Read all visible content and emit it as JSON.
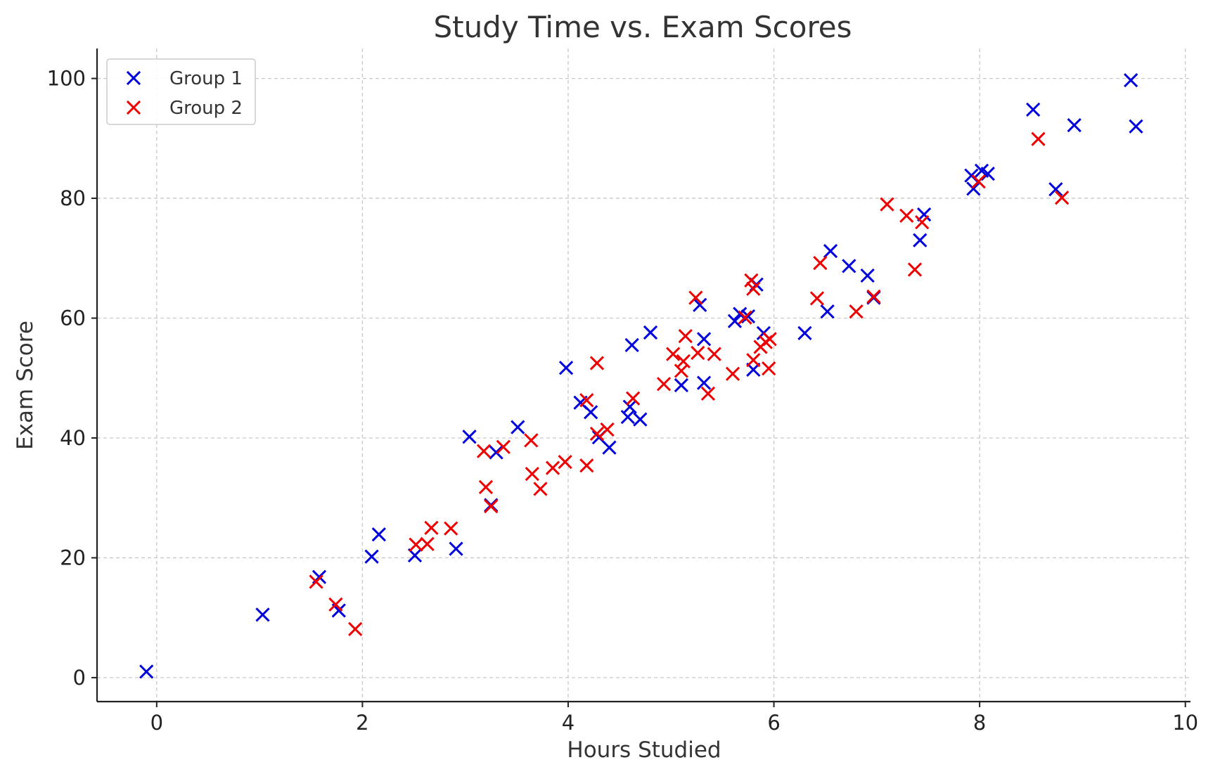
{
  "chart_data": {
    "type": "scatter",
    "title": "Study Time vs. Exam Scores",
    "xlabel": "Hours Studied",
    "ylabel": "Exam Score",
    "xlim": [
      -0.58,
      10.05
    ],
    "ylim": [
      -4,
      105
    ],
    "xticks": [
      0,
      2,
      4,
      6,
      8,
      10
    ],
    "yticks": [
      0,
      20,
      40,
      60,
      80,
      100
    ],
    "grid": true,
    "legend_position": "top-left",
    "marker": "x",
    "series": [
      {
        "name": "Group 1",
        "color": "#0000dd",
        "points": [
          [
            -0.1,
            1
          ],
          [
            1.03,
            10.5
          ],
          [
            1.58,
            16.8
          ],
          [
            1.77,
            11.2
          ],
          [
            2.09,
            20.2
          ],
          [
            2.16,
            23.9
          ],
          [
            2.51,
            20.4
          ],
          [
            2.91,
            21.5
          ],
          [
            3.04,
            40.2
          ],
          [
            3.25,
            28.8
          ],
          [
            3.3,
            37.6
          ],
          [
            3.51,
            41.8
          ],
          [
            3.98,
            51.7
          ],
          [
            4.12,
            45.9
          ],
          [
            4.22,
            44.3
          ],
          [
            4.3,
            40.1
          ],
          [
            4.4,
            38.4
          ],
          [
            4.58,
            43.5
          ],
          [
            4.6,
            45.2
          ],
          [
            4.62,
            55.5
          ],
          [
            4.7,
            43.1
          ],
          [
            4.8,
            57.6
          ],
          [
            5.1,
            48.8
          ],
          [
            5.28,
            62.2
          ],
          [
            5.32,
            49.2
          ],
          [
            5.32,
            56.5
          ],
          [
            5.62,
            59.5
          ],
          [
            5.67,
            60.7
          ],
          [
            5.75,
            60.3
          ],
          [
            5.8,
            51.4
          ],
          [
            5.83,
            65.6
          ],
          [
            5.9,
            57.5
          ],
          [
            6.3,
            57.5
          ],
          [
            6.52,
            61.1
          ],
          [
            6.55,
            71.2
          ],
          [
            6.73,
            68.7
          ],
          [
            6.91,
            67.1
          ],
          [
            6.97,
            63.4
          ],
          [
            7.42,
            73
          ],
          [
            7.46,
            77.3
          ],
          [
            7.92,
            83.8
          ],
          [
            7.94,
            81.6
          ],
          [
            8.02,
            84.6
          ],
          [
            8.08,
            84.1
          ],
          [
            8.52,
            94.8
          ],
          [
            8.74,
            81.5
          ],
          [
            8.92,
            92.2
          ],
          [
            9.47,
            99.7
          ],
          [
            9.52,
            92
          ]
        ]
      },
      {
        "name": "Group 2",
        "color": "#ee0000",
        "points": [
          [
            1.55,
            16
          ],
          [
            1.74,
            12.2
          ],
          [
            1.93,
            8.1
          ],
          [
            2.52,
            22.2
          ],
          [
            2.63,
            22.3
          ],
          [
            2.67,
            25
          ],
          [
            2.86,
            24.9
          ],
          [
            3.18,
            37.8
          ],
          [
            3.2,
            31.8
          ],
          [
            3.25,
            28.6
          ],
          [
            3.37,
            38.5
          ],
          [
            3.64,
            39.6
          ],
          [
            3.65,
            34
          ],
          [
            3.73,
            31.5
          ],
          [
            3.85,
            35
          ],
          [
            3.97,
            36
          ],
          [
            4.18,
            46.3
          ],
          [
            4.18,
            35.4
          ],
          [
            4.28,
            52.5
          ],
          [
            4.28,
            40.7
          ],
          [
            4.38,
            41.4
          ],
          [
            4.63,
            46.6
          ],
          [
            4.93,
            49
          ],
          [
            5.02,
            54
          ],
          [
            5.1,
            51.2
          ],
          [
            5.12,
            52.8
          ],
          [
            5.14,
            57
          ],
          [
            5.24,
            63.4
          ],
          [
            5.26,
            54.2
          ],
          [
            5.36,
            47.4
          ],
          [
            5.42,
            54
          ],
          [
            5.6,
            50.7
          ],
          [
            5.72,
            60.1
          ],
          [
            5.78,
            66.3
          ],
          [
            5.8,
            64.9
          ],
          [
            5.8,
            53
          ],
          [
            5.87,
            55.2
          ],
          [
            5.92,
            56
          ],
          [
            5.95,
            51.6
          ],
          [
            5.96,
            56.5
          ],
          [
            6.42,
            63.3
          ],
          [
            6.45,
            69.2
          ],
          [
            6.8,
            61.1
          ],
          [
            6.97,
            63.6
          ],
          [
            7.1,
            79
          ],
          [
            7.29,
            77.1
          ],
          [
            7.37,
            68.1
          ],
          [
            7.44,
            76
          ],
          [
            7.99,
            82.8
          ],
          [
            8.57,
            89.9
          ],
          [
            8.8,
            80.1
          ]
        ]
      }
    ]
  }
}
